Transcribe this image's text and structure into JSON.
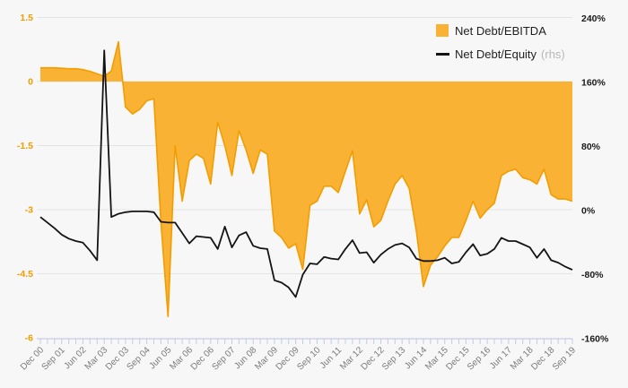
{
  "chart_data": {
    "type": "area+line",
    "n_points": 76,
    "x_tick_every": 3,
    "x_tick_labels": [
      "Dec 00",
      "Sep 01",
      "Jun 02",
      "Mar 03",
      "Dec 03",
      "Sep 04",
      "Jun 05",
      "Mar 06",
      "Dec 06",
      "Sep 07",
      "Jun 08",
      "Mar 09",
      "Dec 09",
      "Sep 10",
      "Jun 11",
      "Mar 12",
      "Dec 12",
      "Sep 13",
      "Jun 14",
      "Mar 15",
      "Dec 15",
      "Sep 16",
      "Jun 17",
      "Mar 18",
      "Dec 18",
      "Sep 19"
    ],
    "left_axis": {
      "labels": [
        "1.5",
        "0",
        "-1.5",
        "-3",
        "-4.5",
        "-6"
      ],
      "values": [
        1.5,
        0,
        -1.5,
        -3,
        -4.5,
        -6
      ]
    },
    "right_axis": {
      "labels": [
        "240%",
        "160%",
        "80%",
        "0%",
        "-80%",
        "-160%"
      ],
      "values": [
        240,
        160,
        80,
        0,
        -80,
        -160
      ]
    },
    "series": [
      {
        "name": "Net Debt/EBITDA",
        "axis": "left",
        "type": "area",
        "values": [
          0.32,
          0.32,
          0.32,
          0.31,
          0.3,
          0.3,
          0.28,
          0.24,
          0.18,
          0.12,
          0.25,
          0.93,
          -0.6,
          -0.76,
          -0.65,
          -0.45,
          -0.4,
          -3.3,
          -5.5,
          -1.5,
          -2.8,
          -1.85,
          -1.7,
          -1.8,
          -2.4,
          -0.95,
          -1.5,
          -2.2,
          -1.15,
          -1.6,
          -2.15,
          -1.6,
          -1.7,
          -3.5,
          -3.65,
          -3.9,
          -3.8,
          -4.4,
          -2.9,
          -2.8,
          -2.45,
          -2.45,
          -2.6,
          -2.1,
          -1.62,
          -3.1,
          -2.77,
          -3.4,
          -3.25,
          -2.8,
          -2.4,
          -2.2,
          -2.5,
          -3.5,
          -4.8,
          -4.3,
          -4.1,
          -3.85,
          -3.65,
          -3.65,
          -3.25,
          -2.8,
          -3.2,
          -3.0,
          -2.85,
          -2.2,
          -2.1,
          -2.05,
          -2.25,
          -2.3,
          -2.4,
          -2.05,
          -2.65,
          -2.75,
          -2.75,
          -2.8
        ]
      },
      {
        "name": "Net Debt/Equity",
        "suffix": "(rhs)",
        "axis": "right",
        "type": "line",
        "values": [
          -8,
          -15,
          -22,
          -30,
          -35,
          -38,
          -40,
          -50,
          -62,
          200,
          -8,
          -4,
          -2,
          -1,
          -1,
          -1,
          -2,
          -14,
          -15,
          -15,
          -28,
          -41,
          -32,
          -33,
          -34,
          -48,
          -20,
          -46,
          -31,
          -27,
          -44,
          -47,
          -48,
          -87,
          -90,
          -96,
          -108,
          -80,
          -66,
          -67,
          -58,
          -60,
          -61,
          -48,
          -37,
          -53,
          -52,
          -65,
          -55,
          -48,
          -43,
          -41,
          -46,
          -60,
          -63,
          -63,
          -62,
          -59,
          -66,
          -64,
          -52,
          -42,
          -56,
          -54,
          -48,
          -34,
          -38,
          -38,
          -42,
          -46,
          -59,
          -48,
          -62,
          -65,
          -70,
          -74
        ]
      }
    ],
    "legend": {
      "position": "top-right",
      "items": [
        {
          "label": "Net Debt/EBITDA"
        },
        {
          "label": "Net Debt/Equity",
          "suffix": "(rhs)"
        }
      ]
    }
  },
  "colors": {
    "background": "#f7f7f7",
    "grid": "#e4e4e4",
    "axis": "#c5cbe4",
    "area_fill": "#f9b233",
    "area_stroke": "#f29d00",
    "line": "#141414",
    "left_axis_text": "#f29d00",
    "right_axis_text": "#1a1a1a",
    "x_axis_text": "#7a7a7a",
    "legend_text": "#222222",
    "legend_rhs_text": "#b8b8b8"
  }
}
